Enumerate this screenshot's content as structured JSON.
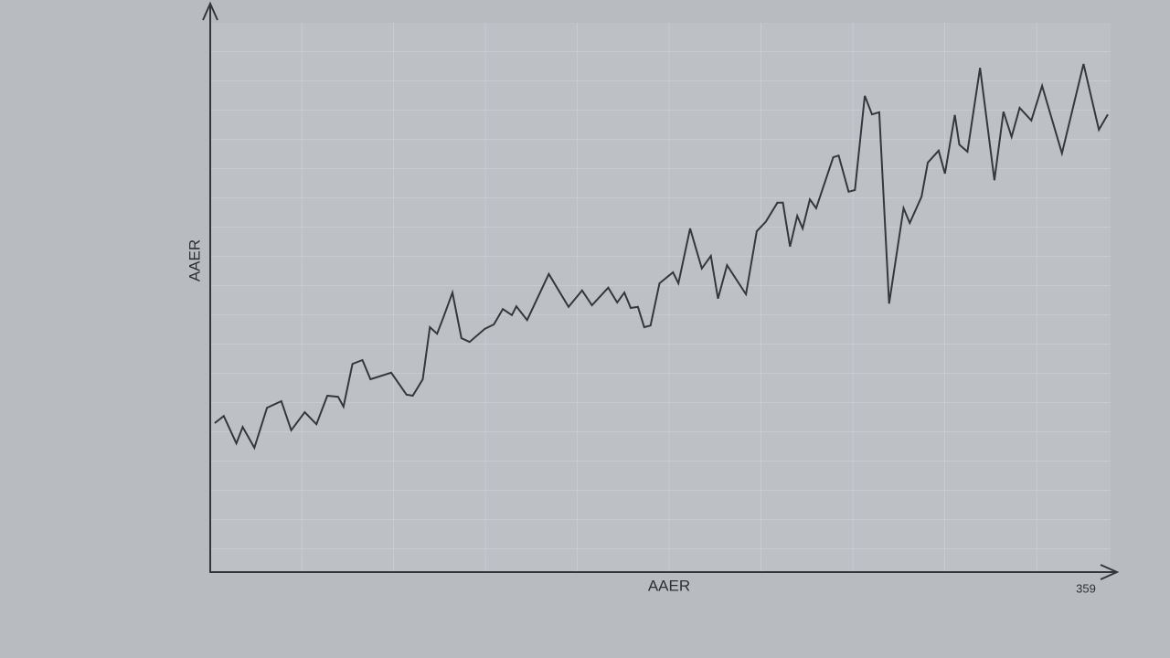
{
  "chart_data": {
    "type": "line",
    "y_label": "AAER",
    "x_label": "AAER",
    "x_end_label": "359",
    "x": [
      0.5,
      1.5,
      2.9,
      3.6,
      4.9,
      6.3,
      7.9,
      9.0,
      10.5,
      11.8,
      13.0,
      14.2,
      14.8,
      15.8,
      16.9,
      17.8,
      20.1,
      21.8,
      22.5,
      23.6,
      24.4,
      25.2,
      25.9,
      26.9,
      27.9,
      28.8,
      30.5,
      31.5,
      32.5,
      33.5,
      34.0,
      35.2,
      37.6,
      39.8,
      41.3,
      42.4,
      44.2,
      45.2,
      46.0,
      46.7,
      47.5,
      48.2,
      48.9,
      49.9,
      51.4,
      52.0,
      53.3,
      54.6,
      55.6,
      56.4,
      57.4,
      59.5,
      60.7,
      61.7,
      63.0,
      63.6,
      64.4,
      65.2,
      65.8,
      66.6,
      67.3,
      69.2,
      69.8,
      70.9,
      71.6,
      72.7,
      73.5,
      74.3,
      75.4,
      77.0,
      77.7,
      79.0,
      79.7,
      80.9,
      81.6,
      82.7,
      83.2,
      84.1,
      85.5,
      87.1,
      88.1,
      89.0,
      89.9,
      91.2,
      92.4,
      94.6,
      97.0,
      98.7,
      99.7
    ],
    "values": [
      27.0,
      28.3,
      23.3,
      26.3,
      22.5,
      29.8,
      31.0,
      25.7,
      29.0,
      26.8,
      32.0,
      31.8,
      30.0,
      37.8,
      38.5,
      35.0,
      36.2,
      32.2,
      32.0,
      35.0,
      44.5,
      43.3,
      46.3,
      50.8,
      42.5,
      41.8,
      44.2,
      45.0,
      47.8,
      46.7,
      48.3,
      45.8,
      54.2,
      48.2,
      51.2,
      48.5,
      51.7,
      49.0,
      50.8,
      48.0,
      48.2,
      44.5,
      44.8,
      52.5,
      54.5,
      52.5,
      62.5,
      55.2,
      57.5,
      49.7,
      55.8,
      50.5,
      62.0,
      63.7,
      67.2,
      67.2,
      59.2,
      64.8,
      62.5,
      67.8,
      66.2,
      75.5,
      75.8,
      69.2,
      69.5,
      86.7,
      83.3,
      83.7,
      48.8,
      66.2,
      63.5,
      68.3,
      74.5,
      76.7,
      72.5,
      83.2,
      77.8,
      76.5,
      91.8,
      71.3,
      83.8,
      79.2,
      84.5,
      82.2,
      88.5,
      76.2,
      92.5,
      80.5,
      83.3
    ],
    "color": "#35383b",
    "xlim": [
      0,
      100
    ],
    "ylim": [
      0,
      100
    ]
  }
}
